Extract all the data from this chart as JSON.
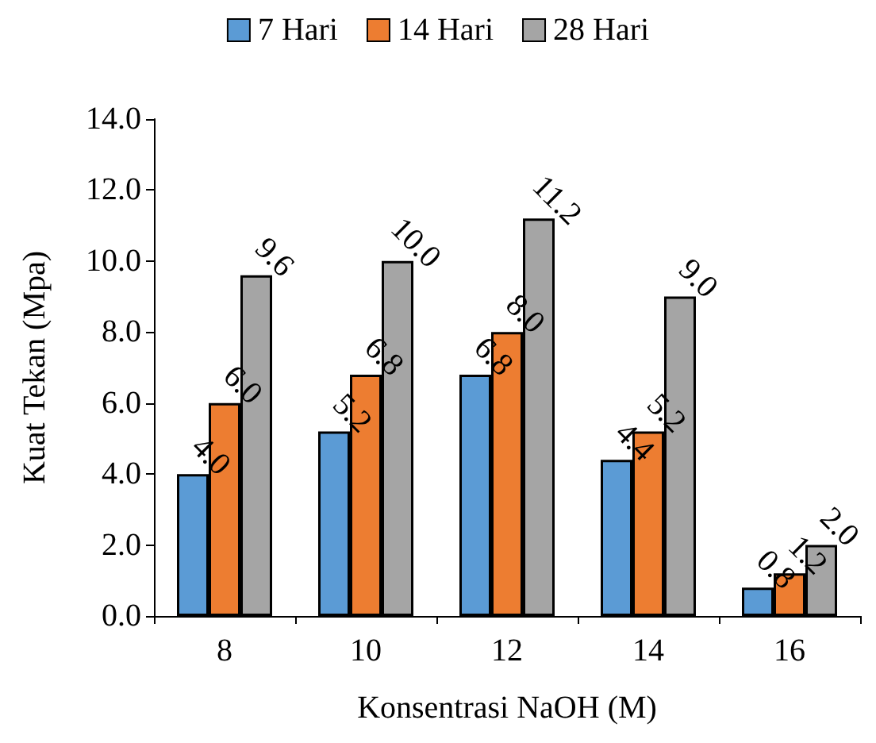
{
  "chart_data": {
    "type": "bar",
    "xlabel": "Konsentrasi NaOH (M)",
    "ylabel": "Kuat Tekan (Mpa)",
    "categories": [
      "8",
      "10",
      "12",
      "14",
      "16"
    ],
    "series": [
      {
        "name": "7 Hari",
        "color": "#5b9bd5",
        "values": [
          4.0,
          5.2,
          6.8,
          4.4,
          0.8
        ],
        "value_labels": [
          "4.0",
          "5.2",
          "6.8",
          "4.4",
          "0.8"
        ]
      },
      {
        "name": "14 Hari",
        "color": "#ed7d31",
        "values": [
          6.0,
          6.8,
          8.0,
          5.2,
          1.2
        ],
        "value_labels": [
          "6.0",
          "6.8",
          "8.0",
          "5.2",
          "1.2"
        ]
      },
      {
        "name": "28 Hari",
        "color": "#a5a5a5",
        "values": [
          9.6,
          10.0,
          11.2,
          9.0,
          2.0
        ],
        "value_labels": [
          "9.6",
          "10.0",
          "11.2",
          "9.0",
          "2.0"
        ]
      }
    ],
    "ylim": [
      0,
      14
    ],
    "yticks": [
      {
        "value": 0,
        "label": "0.0"
      },
      {
        "value": 2,
        "label": "2.0"
      },
      {
        "value": 4,
        "label": "4.0"
      },
      {
        "value": 6,
        "label": "6.0"
      },
      {
        "value": 8,
        "label": "8.0"
      },
      {
        "value": 10,
        "label": "10.0"
      },
      {
        "value": 12,
        "label": "12.0"
      },
      {
        "value": 14,
        "label": "14.0"
      }
    ],
    "grid": false,
    "legend": "top"
  }
}
